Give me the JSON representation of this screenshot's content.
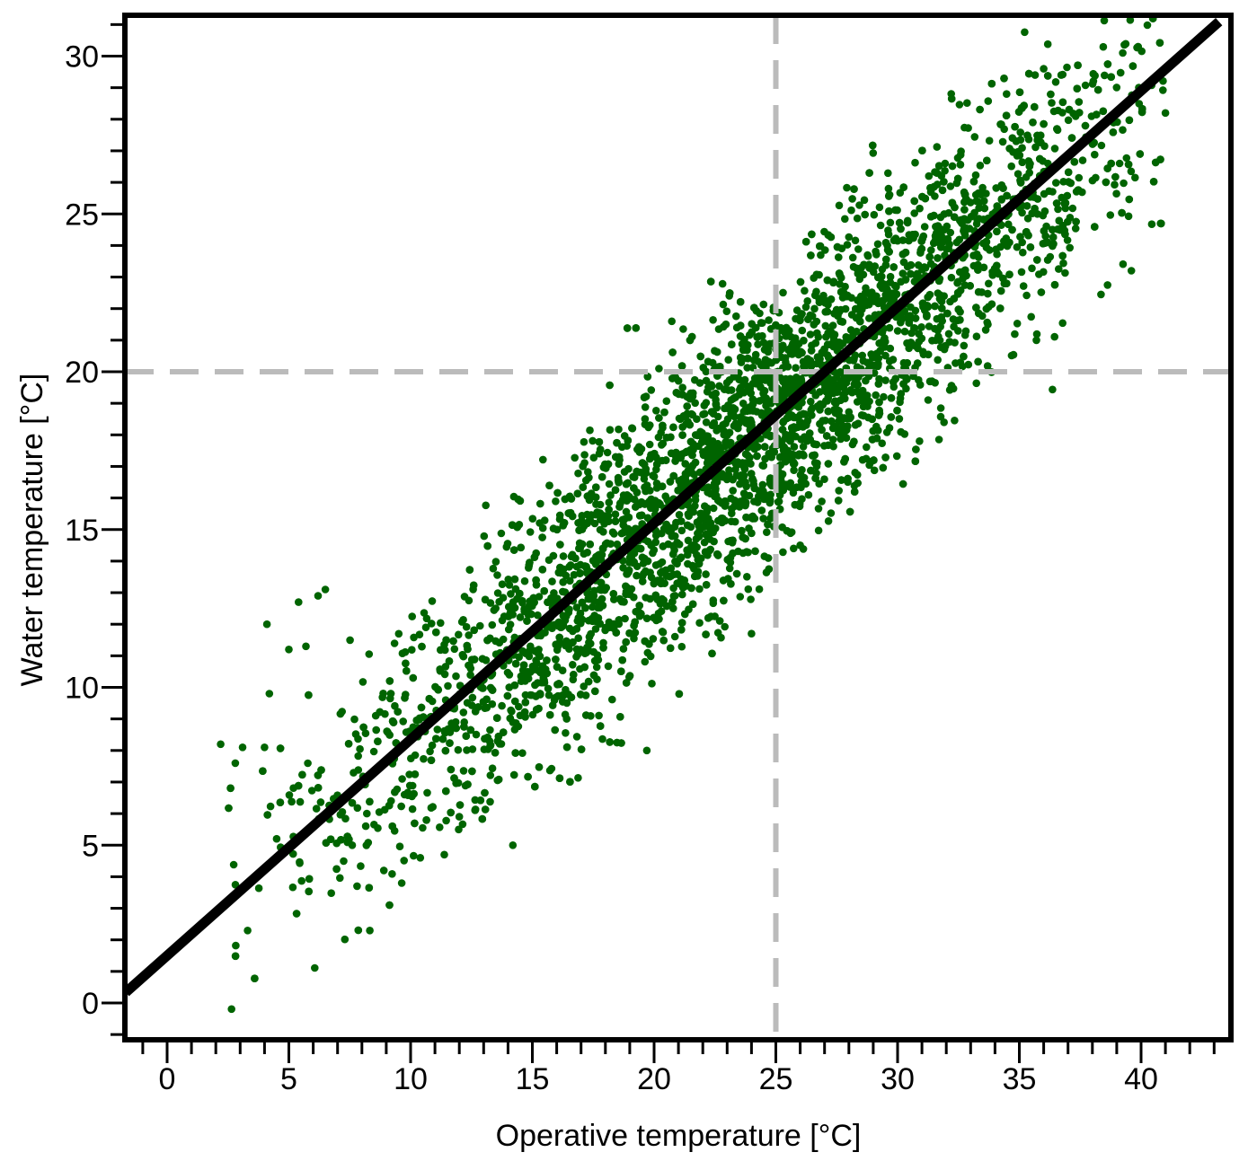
{
  "chart_data": {
    "type": "scatter",
    "title": "",
    "xlabel": "Operative temperature [°C]",
    "ylabel": "Water temperature [°C]",
    "xlim": [
      -1.7,
      43.2
    ],
    "ylim": [
      -1.2,
      31.3
    ],
    "xticks": [
      0,
      5,
      10,
      15,
      20,
      25,
      30,
      35,
      40
    ],
    "xtick_labels": [
      "0",
      "5",
      "10",
      "15",
      "20",
      "25",
      "30",
      "35",
      "40"
    ],
    "yticks": [
      0,
      5,
      10,
      15,
      20,
      25,
      30
    ],
    "ytick_labels": [
      "0",
      "5",
      "10",
      "15",
      "20",
      "25",
      "30"
    ],
    "minor_tick_step": 1,
    "grid": false,
    "legend": "none",
    "point_color": "#006400",
    "line_color": "#000000",
    "reference_line_color": "#bbbbbb",
    "reference_lines": {
      "x": 25,
      "y": 20
    },
    "fit_line": {
      "intercept": 1.5,
      "slope": 0.685
    },
    "cloud": {
      "approx_point_count": 4500,
      "x_range": [
        2.2,
        41
      ],
      "residual_sd": 2.2,
      "x_mean": 24,
      "x_sd": 8.3
    },
    "series": [
      {
        "x": [
          2.2,
          2.8,
          3.1,
          4.0,
          4.1,
          4.2,
          4.5,
          5.0,
          5.4,
          5.7,
          6.2,
          6.5,
          7.6,
          7.8,
          8.9,
          9.2,
          10.4,
          12.0,
          14.2,
          19.7,
          24.0,
          26.0,
          30.9,
          35.7,
          36.0,
          39.6,
          40.8,
          41.0
        ],
        "y": [
          8.2,
          7.6,
          8.1,
          8.1,
          12.0,
          9.8,
          5.2,
          11.2,
          12.7,
          11.3,
          12.9,
          13.1,
          5.0,
          3.7,
          4.2,
          6.4,
          4.6,
          5.9,
          5.0,
          8.0,
          11.7,
          14.5,
          17.8,
          21.0,
          29.6,
          23.2,
          24.7,
          28.2
        ]
      }
    ]
  }
}
